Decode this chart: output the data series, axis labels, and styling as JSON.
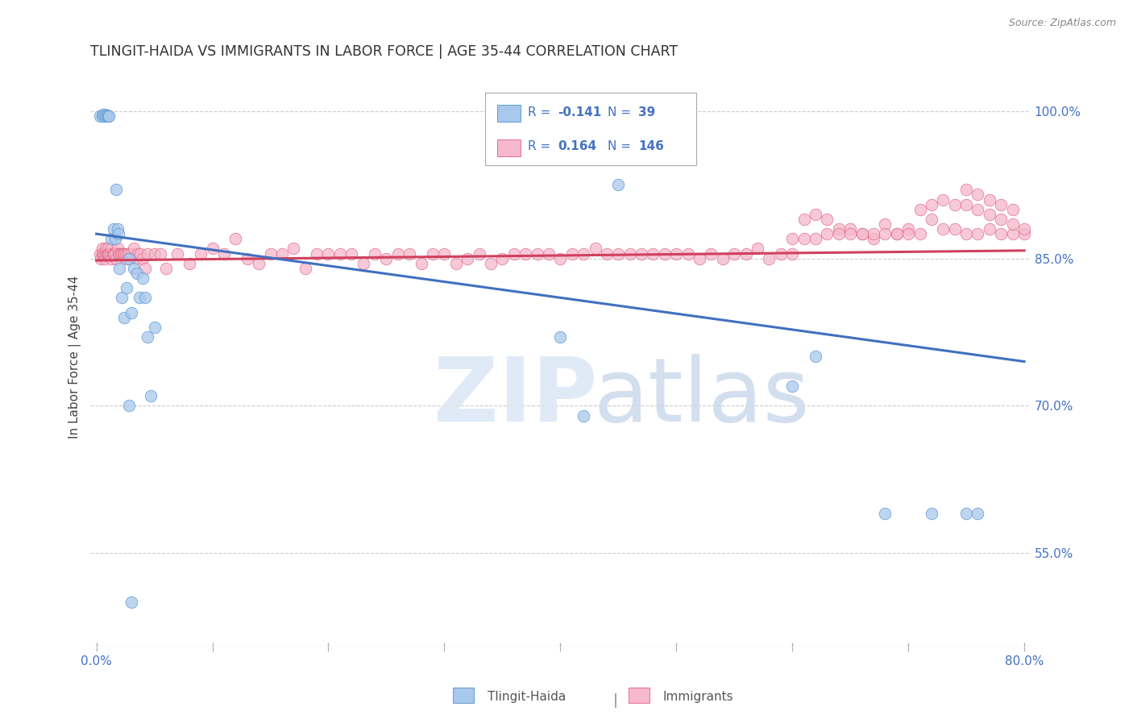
{
  "title": "TLINGIT-HAIDA VS IMMIGRANTS IN LABOR FORCE | AGE 35-44 CORRELATION CHART",
  "source_text": "Source: ZipAtlas.com",
  "ylabel": "In Labor Force | Age 35-44",
  "xlim": [
    -0.005,
    0.805
  ],
  "ylim": [
    0.455,
    1.045
  ],
  "right_yticks": [
    0.55,
    0.7,
    0.85,
    1.0
  ],
  "right_yticklabels": [
    "55.0%",
    "70.0%",
    "85.0%",
    "100.0%"
  ],
  "bottom_xticks": [
    0.0,
    0.1,
    0.2,
    0.3,
    0.4,
    0.5,
    0.6,
    0.7,
    0.8
  ],
  "bottom_xticklabels": [
    "0.0%",
    "",
    "",
    "",
    "",
    "",
    "",
    "",
    "80.0%"
  ],
  "blue_color": "#a8c8ec",
  "pink_color": "#f5b8cc",
  "blue_edge_color": "#5090d0",
  "pink_edge_color": "#e06080",
  "blue_line_color": "#4070c0",
  "pink_line_color": "#d04060",
  "legend_color": "#4472c4",
  "watermark_zip_color": "#dce8f5",
  "watermark_atlas_color": "#ccdaec",
  "blue_line_x0": 0.0,
  "blue_line_y0": 0.875,
  "blue_line_x1": 0.8,
  "blue_line_y1": 0.745,
  "pink_line_x0": 0.0,
  "pink_line_y0": 0.848,
  "pink_line_x1": 0.8,
  "pink_line_y1": 0.858,
  "blue_x": [
    0.003,
    0.005,
    0.006,
    0.007,
    0.008,
    0.009,
    0.01,
    0.011,
    0.013,
    0.015,
    0.016,
    0.017,
    0.018,
    0.019,
    0.02,
    0.022,
    0.024,
    0.026,
    0.028,
    0.03,
    0.032,
    0.035,
    0.037,
    0.04,
    0.042,
    0.044,
    0.047,
    0.05,
    0.03,
    0.028,
    0.4,
    0.6,
    0.68,
    0.72,
    0.75,
    0.76,
    0.42,
    0.45,
    0.62
  ],
  "blue_y": [
    0.995,
    0.995,
    0.997,
    0.997,
    0.995,
    0.996,
    0.995,
    0.995,
    0.87,
    0.88,
    0.87,
    0.92,
    0.88,
    0.875,
    0.84,
    0.81,
    0.79,
    0.82,
    0.85,
    0.795,
    0.84,
    0.835,
    0.81,
    0.83,
    0.81,
    0.77,
    0.71,
    0.78,
    0.5,
    0.7,
    0.77,
    0.72,
    0.59,
    0.59,
    0.59,
    0.59,
    0.69,
    0.925,
    0.75
  ],
  "pink_x": [
    0.003,
    0.004,
    0.005,
    0.005,
    0.006,
    0.006,
    0.007,
    0.007,
    0.008,
    0.008,
    0.009,
    0.009,
    0.01,
    0.01,
    0.011,
    0.012,
    0.012,
    0.013,
    0.013,
    0.014,
    0.015,
    0.015,
    0.016,
    0.017,
    0.018,
    0.019,
    0.02,
    0.021,
    0.022,
    0.023,
    0.024,
    0.025,
    0.026,
    0.027,
    0.028,
    0.03,
    0.032,
    0.034,
    0.036,
    0.038,
    0.04,
    0.042,
    0.044,
    0.05,
    0.055,
    0.06,
    0.07,
    0.08,
    0.09,
    0.1,
    0.11,
    0.12,
    0.13,
    0.14,
    0.15,
    0.16,
    0.17,
    0.18,
    0.19,
    0.2,
    0.21,
    0.22,
    0.23,
    0.24,
    0.25,
    0.26,
    0.27,
    0.28,
    0.29,
    0.3,
    0.31,
    0.32,
    0.33,
    0.34,
    0.35,
    0.36,
    0.37,
    0.38,
    0.39,
    0.4,
    0.41,
    0.42,
    0.43,
    0.44,
    0.45,
    0.46,
    0.47,
    0.48,
    0.49,
    0.5,
    0.51,
    0.52,
    0.53,
    0.54,
    0.55,
    0.56,
    0.57,
    0.58,
    0.59,
    0.6,
    0.61,
    0.62,
    0.63,
    0.64,
    0.65,
    0.66,
    0.67,
    0.68,
    0.69,
    0.7,
    0.71,
    0.72,
    0.73,
    0.74,
    0.75,
    0.76,
    0.77,
    0.78,
    0.79,
    0.8,
    0.6,
    0.61,
    0.62,
    0.63,
    0.64,
    0.65,
    0.66,
    0.67,
    0.68,
    0.69,
    0.7,
    0.71,
    0.72,
    0.73,
    0.74,
    0.75,
    0.76,
    0.77,
    0.78,
    0.79,
    0.8,
    0.75,
    0.76,
    0.77,
    0.78,
    0.79
  ],
  "pink_y": [
    0.855,
    0.85,
    0.855,
    0.86,
    0.855,
    0.855,
    0.855,
    0.85,
    0.855,
    0.86,
    0.855,
    0.855,
    0.86,
    0.855,
    0.855,
    0.855,
    0.855,
    0.85,
    0.86,
    0.855,
    0.855,
    0.855,
    0.855,
    0.85,
    0.86,
    0.855,
    0.855,
    0.855,
    0.855,
    0.855,
    0.855,
    0.855,
    0.85,
    0.855,
    0.855,
    0.855,
    0.86,
    0.85,
    0.855,
    0.855,
    0.85,
    0.84,
    0.855,
    0.855,
    0.855,
    0.84,
    0.855,
    0.845,
    0.855,
    0.86,
    0.855,
    0.87,
    0.85,
    0.845,
    0.855,
    0.855,
    0.86,
    0.84,
    0.855,
    0.855,
    0.855,
    0.855,
    0.845,
    0.855,
    0.85,
    0.855,
    0.855,
    0.845,
    0.855,
    0.855,
    0.845,
    0.85,
    0.855,
    0.845,
    0.85,
    0.855,
    0.855,
    0.855,
    0.855,
    0.85,
    0.855,
    0.855,
    0.86,
    0.855,
    0.855,
    0.855,
    0.855,
    0.855,
    0.855,
    0.855,
    0.855,
    0.85,
    0.855,
    0.85,
    0.855,
    0.855,
    0.86,
    0.85,
    0.855,
    0.855,
    0.87,
    0.87,
    0.89,
    0.88,
    0.88,
    0.875,
    0.87,
    0.885,
    0.875,
    0.88,
    0.875,
    0.89,
    0.88,
    0.88,
    0.875,
    0.875,
    0.88,
    0.875,
    0.875,
    0.875,
    0.87,
    0.89,
    0.895,
    0.875,
    0.875,
    0.875,
    0.875,
    0.875,
    0.875,
    0.875,
    0.875,
    0.9,
    0.905,
    0.91,
    0.905,
    0.905,
    0.9,
    0.895,
    0.89,
    0.885,
    0.88,
    0.92,
    0.915,
    0.91,
    0.905,
    0.9
  ]
}
